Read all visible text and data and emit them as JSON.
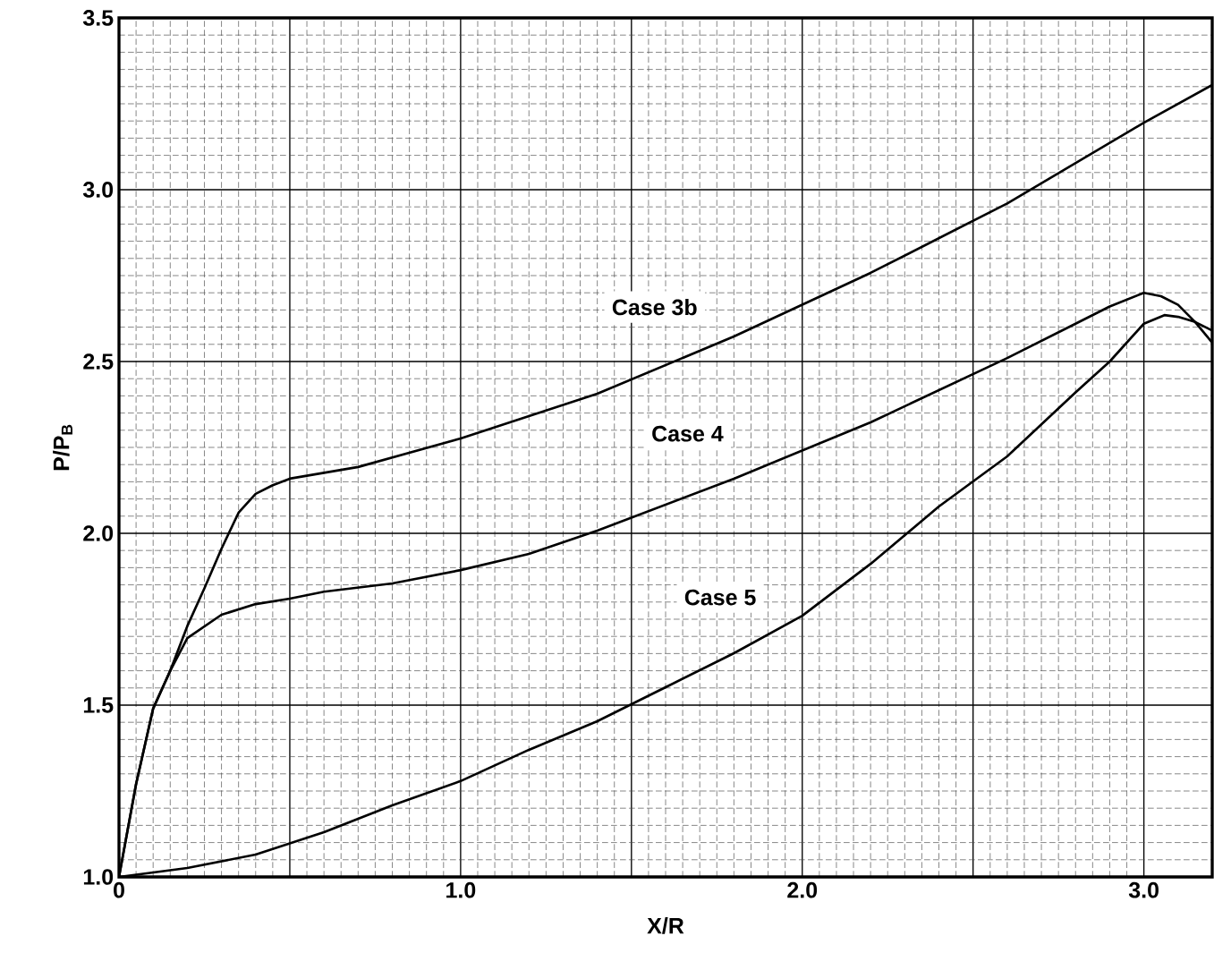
{
  "chart_data": {
    "type": "line",
    "xlabel": "X/R",
    "ylabel": "P/P$_{B}$",
    "xlim": [
      0,
      3.2
    ],
    "ylim": [
      1.0,
      3.5
    ],
    "xticks": [
      0,
      {
        "value": 0.5,
        "label": null
      },
      {
        "value": 1,
        "label": "1.0"
      },
      {
        "value": 1.5,
        "label": null
      },
      {
        "value": 2,
        "label": "2.0"
      },
      {
        "value": 2.5,
        "label": null
      },
      {
        "value": 3,
        "label": "3.0"
      }
    ],
    "yticks": [
      {
        "value": 1,
        "label": "1.0"
      },
      1.5,
      {
        "value": 2,
        "label": "2.0"
      },
      2.5,
      {
        "value": 3,
        "label": "3.0"
      },
      3.5
    ],
    "grid": true,
    "line_style": "solid",
    "series": [
      {
        "name": "Case 3b",
        "color": "#000000",
        "x": [
          0,
          0.05,
          0.1,
          0.15,
          0.2,
          0.25,
          0.3,
          0.35,
          0.4,
          0.45,
          0.5,
          0.7,
          1.0,
          1.4,
          1.8,
          2.2,
          2.6,
          3.0,
          3.2
        ],
        "values": [
          1.0,
          1.27,
          1.49,
          1.6,
          1.73,
          1.84,
          1.955,
          2.06,
          2.115,
          2.14,
          2.159,
          2.193,
          2.276,
          2.406,
          2.573,
          2.758,
          2.96,
          3.195,
          3.305
        ]
      },
      {
        "name": "Case 4",
        "color": "#000000",
        "x": [
          0,
          0.05,
          0.1,
          0.15,
          0.2,
          0.3,
          0.4,
          0.5,
          0.6,
          0.8,
          1.0,
          1.2,
          1.4,
          1.8,
          2.2,
          2.6,
          2.8,
          2.9,
          3.0,
          3.05,
          3.1,
          3.15,
          3.2
        ],
        "values": [
          1.0,
          1.27,
          1.49,
          1.6,
          1.695,
          1.763,
          1.794,
          1.81,
          1.83,
          1.854,
          1.893,
          1.94,
          2.008,
          2.159,
          2.323,
          2.51,
          2.61,
          2.66,
          2.7,
          2.69,
          2.665,
          2.615,
          2.555
        ]
      },
      {
        "name": "Case 5",
        "color": "#000000",
        "x": [
          0,
          0.2,
          0.4,
          0.6,
          0.8,
          1.0,
          1.2,
          1.4,
          1.6,
          1.8,
          2.0,
          2.2,
          2.4,
          2.6,
          2.8,
          2.9,
          3.0,
          3.06,
          3.1,
          3.15,
          3.2
        ],
        "values": [
          1.0,
          1.026,
          1.065,
          1.13,
          1.208,
          1.279,
          1.37,
          1.453,
          1.552,
          1.651,
          1.76,
          1.911,
          2.078,
          2.224,
          2.41,
          2.5,
          2.61,
          2.635,
          2.63,
          2.615,
          2.59
        ]
      }
    ]
  }
}
